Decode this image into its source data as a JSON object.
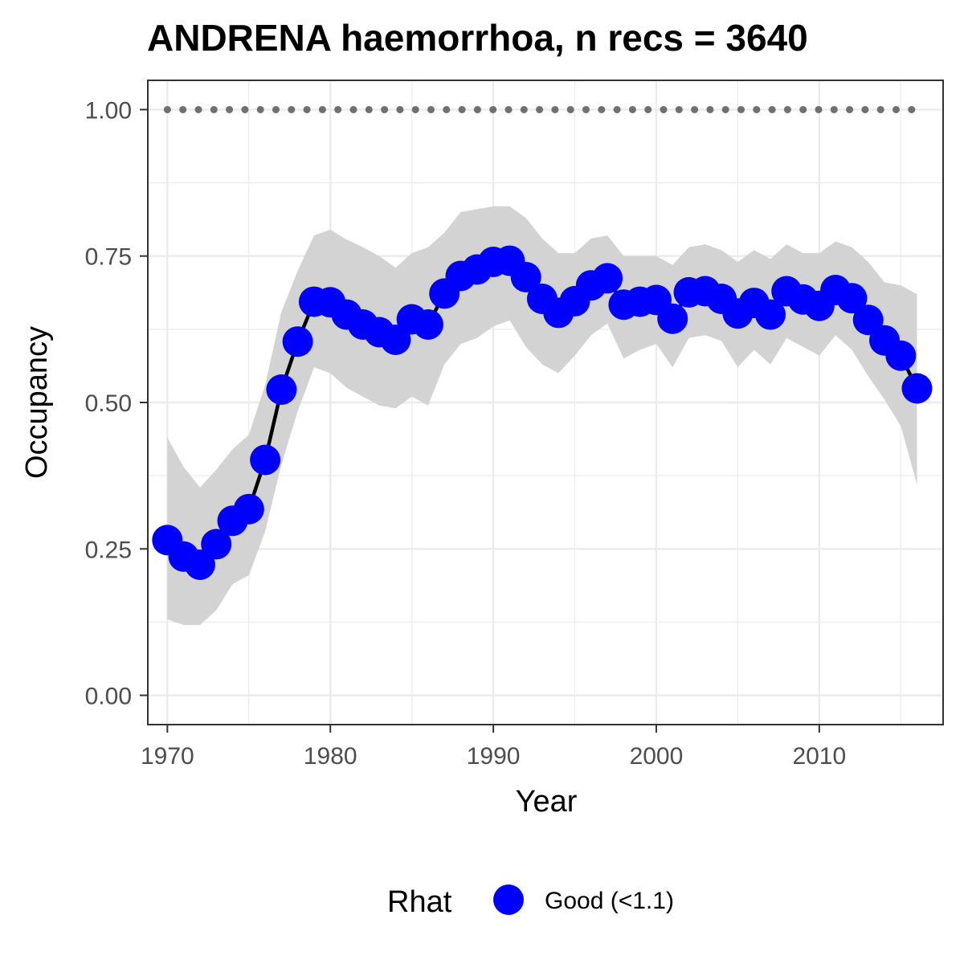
{
  "chart_data": {
    "type": "line",
    "title": "ANDRENA haemorrhoa, n recs = 3640",
    "xlabel": "Year",
    "ylabel": "Occupancy",
    "xlim": [
      1968.8,
      2017.6
    ],
    "ylim": [
      -0.05,
      1.05
    ],
    "x_ticks": [
      1970,
      1980,
      1990,
      2000,
      2010
    ],
    "x_tick_labels": [
      "1970",
      "1980",
      "1990",
      "2000",
      "2010"
    ],
    "y_ticks": [
      0,
      0.25,
      0.5,
      0.75,
      1.0
    ],
    "y_tick_labels": [
      "0.00",
      "0.25",
      "0.50",
      "0.75",
      "1.00"
    ],
    "grid": true,
    "x": [
      1970,
      1971,
      1972,
      1973,
      1974,
      1975,
      1976,
      1977,
      1978,
      1979,
      1980,
      1981,
      1982,
      1983,
      1984,
      1985,
      1986,
      1987,
      1988,
      1989,
      1990,
      1991,
      1992,
      1993,
      1994,
      1995,
      1996,
      1997,
      1998,
      1999,
      2000,
      2001,
      2002,
      2003,
      2004,
      2005,
      2006,
      2007,
      2008,
      2009,
      2010,
      2011,
      2012,
      2013,
      2014,
      2015,
      2016
    ],
    "series": [
      {
        "values": [
          0.265,
          0.237,
          0.223,
          0.258,
          0.298,
          0.318,
          0.402,
          0.522,
          0.604,
          0.672,
          0.671,
          0.65,
          0.633,
          0.62,
          0.607,
          0.642,
          0.633,
          0.686,
          0.716,
          0.727,
          0.74,
          0.742,
          0.714,
          0.677,
          0.653,
          0.673,
          0.7,
          0.712,
          0.667,
          0.672,
          0.675,
          0.643,
          0.688,
          0.69,
          0.677,
          0.652,
          0.67,
          0.65,
          0.69,
          0.676,
          0.665,
          0.692,
          0.678,
          0.641,
          0.606,
          0.58,
          0.524
        ],
        "lower": [
          0.13,
          0.12,
          0.12,
          0.145,
          0.19,
          0.205,
          0.28,
          0.395,
          0.485,
          0.56,
          0.55,
          0.525,
          0.51,
          0.495,
          0.49,
          0.51,
          0.495,
          0.565,
          0.6,
          0.61,
          0.63,
          0.64,
          0.595,
          0.565,
          0.55,
          0.58,
          0.615,
          0.635,
          0.575,
          0.59,
          0.6,
          0.56,
          0.61,
          0.615,
          0.605,
          0.56,
          0.59,
          0.565,
          0.61,
          0.595,
          0.58,
          0.615,
          0.59,
          0.545,
          0.505,
          0.46,
          0.36
        ],
        "upper": [
          0.44,
          0.39,
          0.355,
          0.385,
          0.42,
          0.445,
          0.53,
          0.655,
          0.725,
          0.785,
          0.795,
          0.778,
          0.765,
          0.75,
          0.73,
          0.755,
          0.765,
          0.79,
          0.825,
          0.83,
          0.835,
          0.835,
          0.815,
          0.78,
          0.755,
          0.755,
          0.78,
          0.785,
          0.75,
          0.75,
          0.75,
          0.735,
          0.765,
          0.77,
          0.76,
          0.74,
          0.76,
          0.745,
          0.77,
          0.755,
          0.755,
          0.775,
          0.765,
          0.74,
          0.705,
          0.7,
          0.685
        ]
      },
      {
        "name": "reference",
        "values": [
          1,
          1,
          1,
          1,
          1,
          1,
          1,
          1,
          1,
          1,
          1,
          1,
          1,
          1,
          1,
          1,
          1,
          1,
          1,
          1,
          1,
          1,
          1,
          1,
          1,
          1,
          1,
          1,
          1,
          1,
          1,
          1,
          1,
          1,
          1,
          1,
          1,
          1,
          1,
          1,
          1,
          1,
          1,
          1,
          1,
          1,
          1
        ]
      }
    ],
    "legend": {
      "title": "Rhat",
      "position": "bottom",
      "items": [
        {
          "label": "Good (<1.1)",
          "color": "#0000ff"
        }
      ]
    },
    "colors": {
      "points": "#0000ff",
      "line": "#000000",
      "ribbon": "#d3d3d3",
      "reference": "#707070",
      "grid": "#ebebeb",
      "panel_border": "#333333"
    }
  }
}
